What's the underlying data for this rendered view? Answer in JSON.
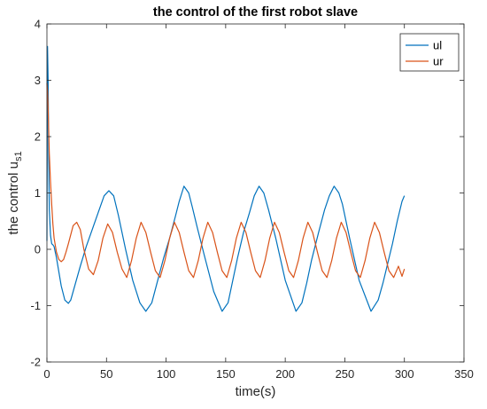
{
  "chart_data": {
    "type": "line",
    "title": "the control of the first robot slave",
    "xlabel": "time(s)",
    "ylabel_main": "the control u",
    "ylabel_sub": "s1",
    "xlim": [
      0,
      350
    ],
    "ylim": [
      -2,
      4
    ],
    "xticks": [
      "0",
      "50",
      "100",
      "150",
      "200",
      "250",
      "300",
      "350"
    ],
    "yticks": [
      "-2",
      "-1",
      "0",
      "1",
      "2",
      "3",
      "4"
    ],
    "grid": false,
    "legend_position": "top-right",
    "colors": {
      "ul": "#0072BD",
      "ur": "#D95319",
      "axis": "#262626"
    },
    "series": [
      {
        "name": "ul",
        "x": [
          0,
          0.5,
          1,
          1.5,
          2,
          3,
          4,
          5,
          6,
          8,
          10,
          12,
          15,
          18,
          20,
          24,
          28,
          33,
          38,
          43,
          48,
          52,
          56,
          60,
          66,
          72,
          78,
          83,
          88,
          93,
          98,
          103,
          108,
          111,
          115,
          119,
          122,
          126,
          132,
          140,
          147,
          152,
          156,
          160,
          165,
          170,
          174,
          178,
          182,
          186,
          192,
          200,
          209,
          214,
          218,
          222,
          228,
          233,
          237,
          241,
          245,
          248,
          254,
          262,
          272,
          278,
          282,
          286,
          290,
          294,
          298,
          300
        ],
        "values": [
          0.15,
          3.6,
          3.0,
          1.6,
          0.7,
          0.25,
          0.1,
          0.08,
          0.05,
          -0.15,
          -0.4,
          -0.65,
          -0.9,
          -0.96,
          -0.9,
          -0.6,
          -0.3,
          0.05,
          0.35,
          0.65,
          0.95,
          1.04,
          0.95,
          0.6,
          0.0,
          -0.55,
          -0.95,
          -1.1,
          -0.95,
          -0.55,
          -0.15,
          0.2,
          0.6,
          0.85,
          1.12,
          1.0,
          0.75,
          0.4,
          -0.1,
          -0.75,
          -1.1,
          -0.95,
          -0.55,
          -0.15,
          0.3,
          0.65,
          0.95,
          1.12,
          1.0,
          0.7,
          0.2,
          -0.55,
          -1.1,
          -0.95,
          -0.6,
          -0.2,
          0.3,
          0.7,
          0.95,
          1.12,
          1.0,
          0.8,
          0.2,
          -0.55,
          -1.1,
          -0.9,
          -0.6,
          -0.25,
          0.1,
          0.5,
          0.85,
          0.95
        ]
      },
      {
        "name": "ur",
        "x": [
          0,
          0.5,
          1,
          1.5,
          2,
          3,
          4,
          5,
          6,
          8,
          10,
          12,
          14,
          16,
          18,
          22,
          25,
          28,
          31,
          35,
          39,
          43,
          47,
          51,
          55,
          59,
          63,
          67,
          71,
          75,
          79,
          83,
          87,
          91,
          95,
          99,
          103,
          107,
          111,
          115,
          119,
          123,
          127,
          131,
          135,
          139,
          143,
          147,
          151,
          155,
          159,
          163,
          167,
          171,
          175,
          179,
          183,
          187,
          191,
          195,
          199,
          203,
          207,
          211,
          215,
          219,
          223,
          227,
          231,
          235,
          239,
          243,
          247,
          251,
          255,
          259,
          263,
          267,
          271,
          275,
          279,
          283,
          287,
          291,
          295,
          298,
          300
        ],
        "values": [
          2.95,
          2.8,
          2.5,
          2.1,
          1.7,
          1.2,
          0.8,
          0.45,
          0.2,
          -0.05,
          -0.18,
          -0.22,
          -0.18,
          -0.05,
          0.1,
          0.42,
          0.48,
          0.35,
          0.0,
          -0.35,
          -0.45,
          -0.2,
          0.2,
          0.45,
          0.3,
          -0.05,
          -0.35,
          -0.5,
          -0.2,
          0.2,
          0.48,
          0.3,
          -0.05,
          -0.38,
          -0.5,
          -0.2,
          0.2,
          0.48,
          0.3,
          -0.05,
          -0.38,
          -0.5,
          -0.2,
          0.2,
          0.48,
          0.3,
          -0.05,
          -0.38,
          -0.5,
          -0.2,
          0.2,
          0.48,
          0.3,
          -0.05,
          -0.38,
          -0.5,
          -0.2,
          0.2,
          0.48,
          0.3,
          -0.05,
          -0.38,
          -0.5,
          -0.2,
          0.2,
          0.48,
          0.3,
          -0.05,
          -0.38,
          -0.5,
          -0.2,
          0.2,
          0.48,
          0.3,
          -0.05,
          -0.38,
          -0.5,
          -0.2,
          0.2,
          0.48,
          0.3,
          -0.05,
          -0.38,
          -0.5,
          -0.3,
          -0.48,
          -0.35
        ]
      }
    ]
  }
}
